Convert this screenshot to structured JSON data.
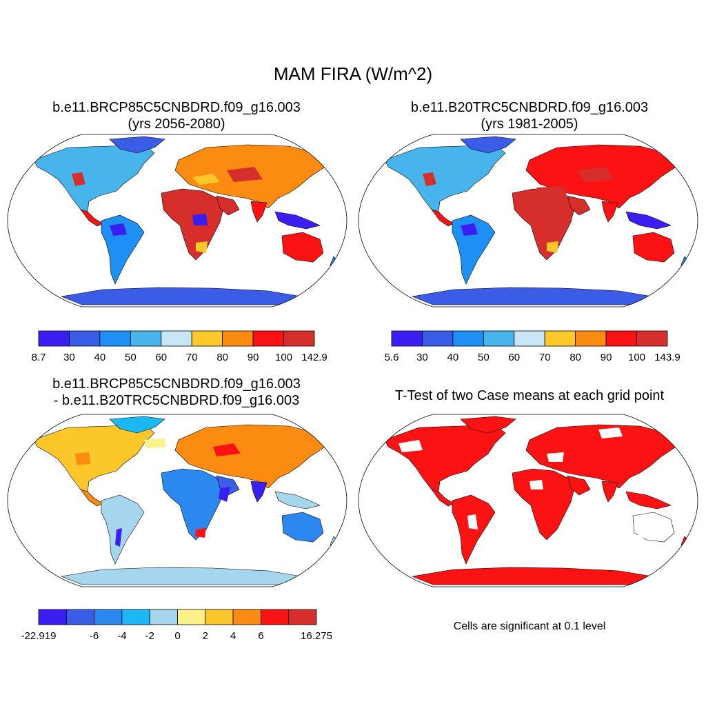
{
  "title": "MAM FIRA (W/m^2)",
  "panels": [
    {
      "id": "future",
      "title_line1": "b.e11.BRCP85C5CNBDRD.f09_g16.003",
      "title_line2": "(yrs 2056-2080)",
      "colorbar": {
        "colors": [
          "#3b1ff2",
          "#3a5ce6",
          "#1e90f5",
          "#48b4ec",
          "#c7e6f7",
          "#fcc92a",
          "#fb8b11",
          "#fb1313",
          "#d62e2b"
        ],
        "labels": [
          "8.7",
          "30",
          "40",
          "50",
          "60",
          "70",
          "80",
          "90",
          "100",
          "142.9"
        ]
      }
    },
    {
      "id": "historical",
      "title_line1": "b.e11.B20TRC5CNBDRD.f09_g16.003",
      "title_line2": "(yrs 1981-2005)",
      "colorbar": {
        "colors": [
          "#3b1ff2",
          "#3a5ce6",
          "#1e90f5",
          "#48b4ec",
          "#c7e6f7",
          "#fcc92a",
          "#fb8b11",
          "#fb1313",
          "#d62e2b"
        ],
        "labels": [
          "5.6",
          "30",
          "40",
          "50",
          "60",
          "70",
          "80",
          "90",
          "100",
          "143.9"
        ]
      }
    },
    {
      "id": "difference",
      "title_line1": "b.e11.BRCP85C5CNBDRD.f09_g16.003",
      "title_line2": "- b.e11.B20TRC5CNBDRD.f09_g16.003",
      "colorbar": {
        "colors": [
          "#3b1ff2",
          "#3a5ce6",
          "#2a88ee",
          "#1cb8f5",
          "#a6d6ee",
          "#fdf28a",
          "#fcc72a",
          "#fb8b11",
          "#fb1313",
          "#d62e2b"
        ],
        "labels": [
          "-22.919",
          "",
          "-6",
          "-4",
          "-2",
          "0",
          "2",
          "4",
          "6",
          "",
          "16.275"
        ]
      }
    },
    {
      "id": "ttest",
      "title_line1": "T-Test of two Case means at each grid point",
      "title_line2": "",
      "note": "Cells are significant at 0.1 level"
    }
  ]
}
